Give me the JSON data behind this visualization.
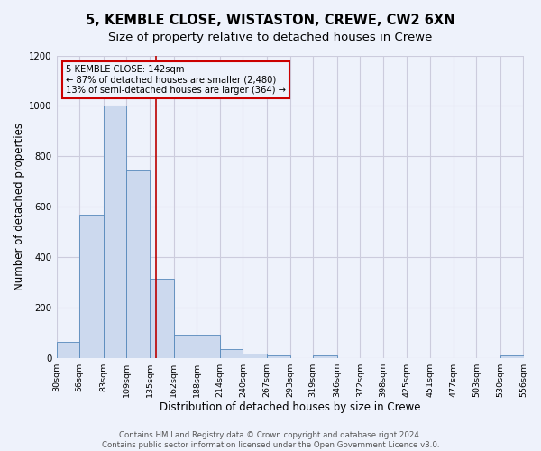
{
  "title": "5, KEMBLE CLOSE, WISTASTON, CREWE, CW2 6XN",
  "subtitle": "Size of property relative to detached houses in Crewe",
  "xlabel": "Distribution of detached houses by size in Crewe",
  "ylabel": "Number of detached properties",
  "bar_edges": [
    30,
    56,
    83,
    109,
    135,
    162,
    188,
    214,
    240,
    267,
    293,
    319,
    346,
    372,
    398,
    425,
    451,
    477,
    503,
    530,
    556
  ],
  "bar_heights": [
    65,
    570,
    1000,
    745,
    315,
    95,
    95,
    35,
    20,
    10,
    0,
    10,
    0,
    0,
    0,
    0,
    0,
    0,
    0,
    10
  ],
  "bar_color": "#ccd9ee",
  "bar_edge_color": "#5588bb",
  "property_line_x": 142,
  "property_line_color": "#bb0000",
  "annotation_line1": "5 KEMBLE CLOSE: 142sqm",
  "annotation_line2": "← 87% of detached houses are smaller (2,480)",
  "annotation_line3": "13% of semi-detached houses are larger (364) →",
  "annotation_box_color": "#cc0000",
  "ylim": [
    0,
    1200
  ],
  "yticks": [
    0,
    200,
    400,
    600,
    800,
    1000,
    1200
  ],
  "tick_labels": [
    "30sqm",
    "56sqm",
    "83sqm",
    "109sqm",
    "135sqm",
    "162sqm",
    "188sqm",
    "214sqm",
    "240sqm",
    "267sqm",
    "293sqm",
    "319sqm",
    "346sqm",
    "372sqm",
    "398sqm",
    "425sqm",
    "451sqm",
    "477sqm",
    "503sqm",
    "530sqm",
    "556sqm"
  ],
  "footer_line1": "Contains HM Land Registry data © Crown copyright and database right 2024.",
  "footer_line2": "Contains public sector information licensed under the Open Government Licence v3.0.",
  "background_color": "#eef2fb",
  "grid_color": "#ccccdd",
  "title_fontsize": 10.5,
  "subtitle_fontsize": 9.5,
  "axis_label_fontsize": 8.5,
  "tick_fontsize": 6.8,
  "footer_fontsize": 6.2
}
